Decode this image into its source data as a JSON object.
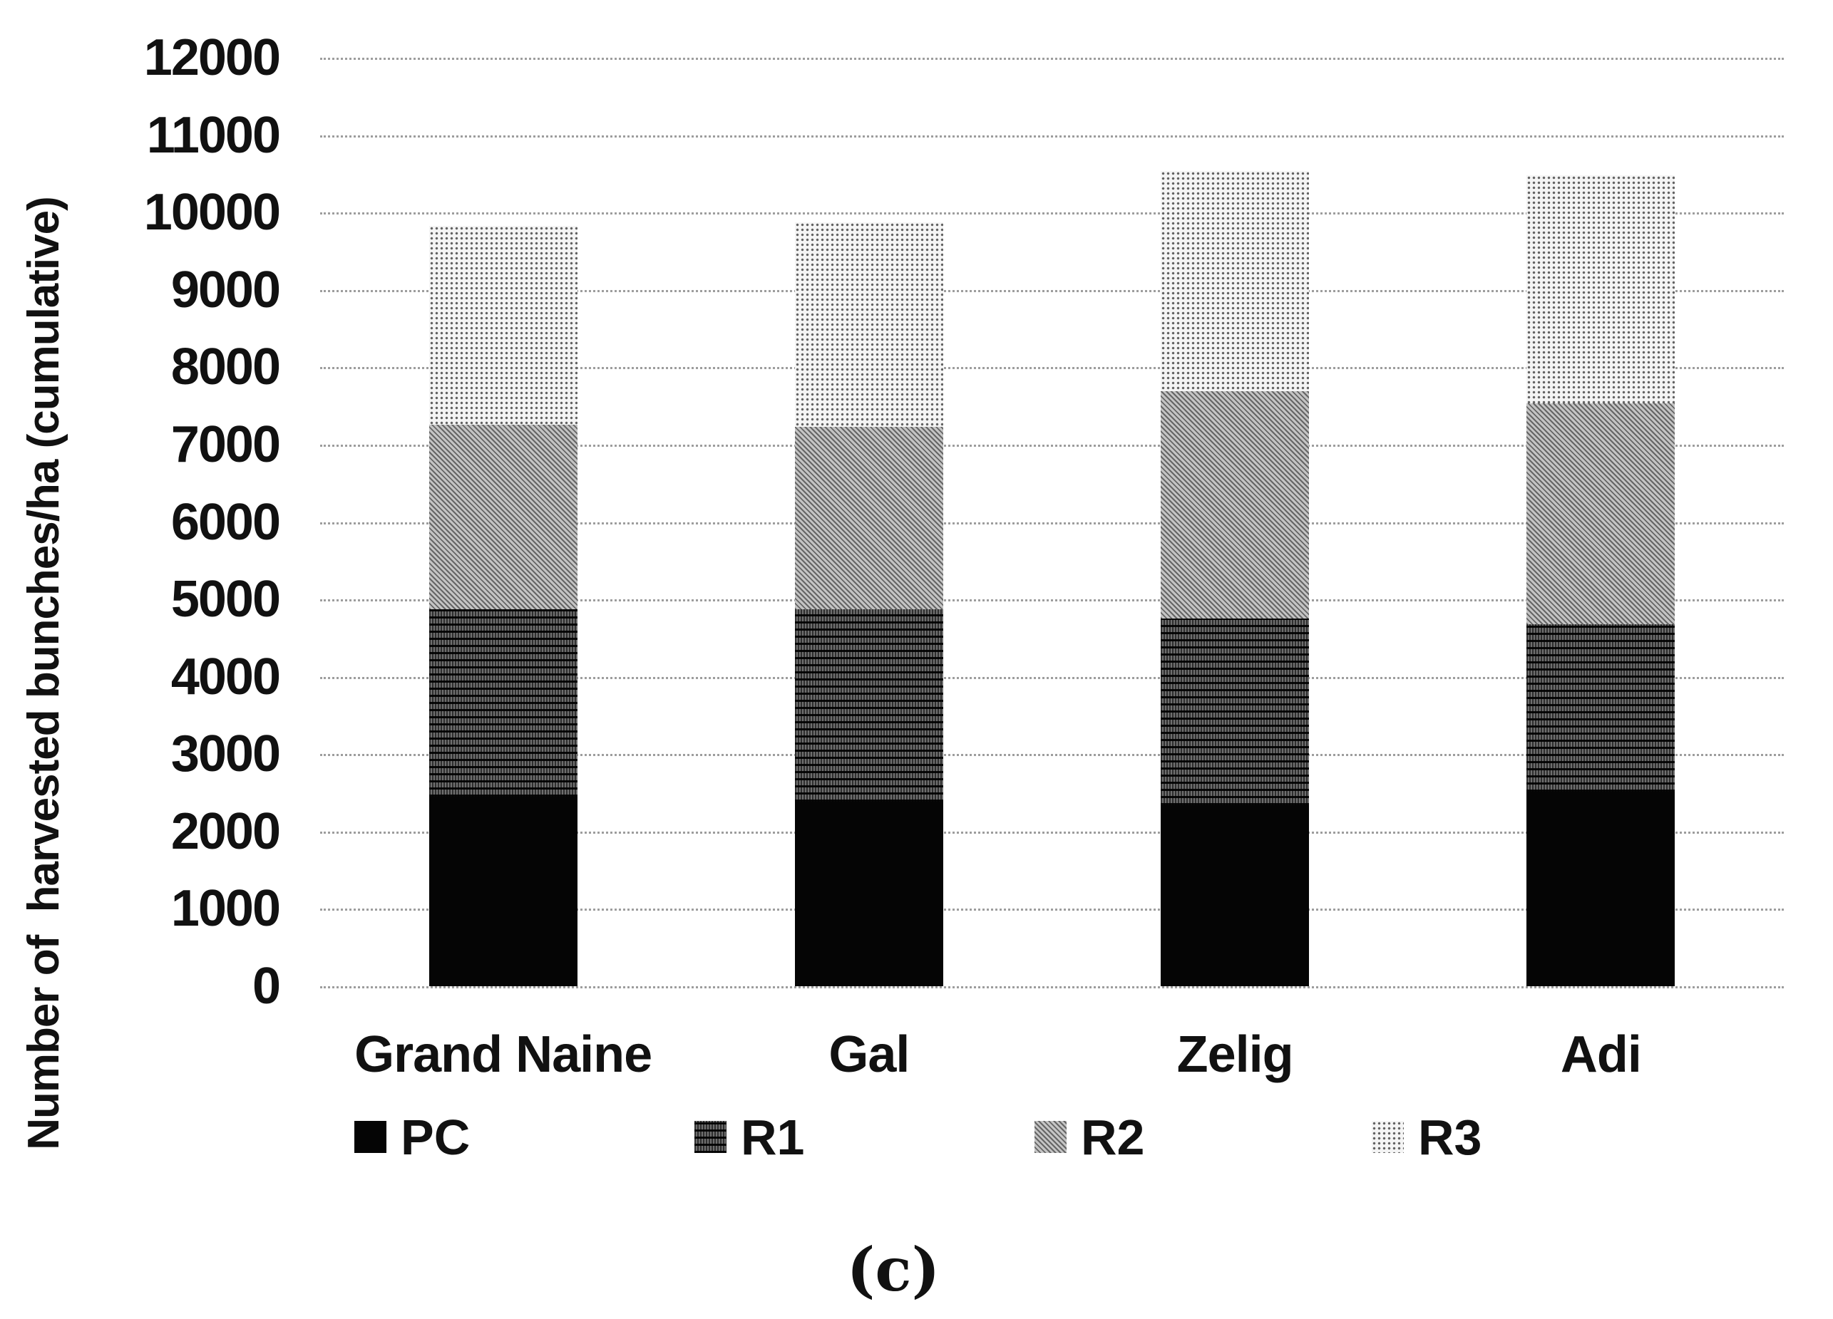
{
  "figure": {
    "caption": "(c)",
    "background_color": "#ffffff",
    "text_color": "#111111",
    "gridline_color": "#9d9d9d"
  },
  "y_axis": {
    "title": "Number of  harvested bunches/ha (cumulative)",
    "min": 0,
    "max": 12000,
    "step": 1000,
    "tick_labels": [
      "12000",
      "11000",
      "10000",
      "9000",
      "8000",
      "7000",
      "6000",
      "5000",
      "4000",
      "3000",
      "2000",
      "1000",
      "0"
    ]
  },
  "x_axis": {
    "categories": [
      "Grand Naine",
      "Gal",
      "Zelig",
      "Adi"
    ]
  },
  "legend": {
    "position": "bottom",
    "items": [
      {
        "label": "PC",
        "pattern": "solid-black",
        "color": "#050505"
      },
      {
        "label": "R1",
        "pattern": "dark-hatch",
        "color": "#4f4f4f"
      },
      {
        "label": "R2",
        "pattern": "diagonal-hatch",
        "color": "#9b9b9b"
      },
      {
        "label": "R3",
        "pattern": "light-dots",
        "color": "#dcdcdc"
      }
    ]
  },
  "chart_data": {
    "type": "bar",
    "stacked": true,
    "title": "",
    "xlabel": "",
    "ylabel": "Number of  harvested bunches/ha (cumulative)",
    "ylim": [
      0,
      12000
    ],
    "ytick_step": 1000,
    "grid": "horizontal-dotted",
    "legend_position": "bottom",
    "categories": [
      "Grand Naine",
      "Gal",
      "Zelig",
      "Adi"
    ],
    "series": [
      {
        "name": "PC",
        "pattern": "solid-black",
        "values": [
          2450,
          2390,
          2340,
          2510
        ]
      },
      {
        "name": "R1",
        "pattern": "dark-hatch",
        "values": [
          2420,
          2480,
          2410,
          2170
        ]
      },
      {
        "name": "R2",
        "pattern": "diagonal-hatch",
        "values": [
          2390,
          2360,
          2940,
          2850
        ]
      },
      {
        "name": "R3",
        "pattern": "light-dots",
        "values": [
          2570,
          2640,
          2850,
          2950
        ]
      }
    ],
    "stacked_totals": [
      9830,
      9870,
      10540,
      10480
    ]
  }
}
